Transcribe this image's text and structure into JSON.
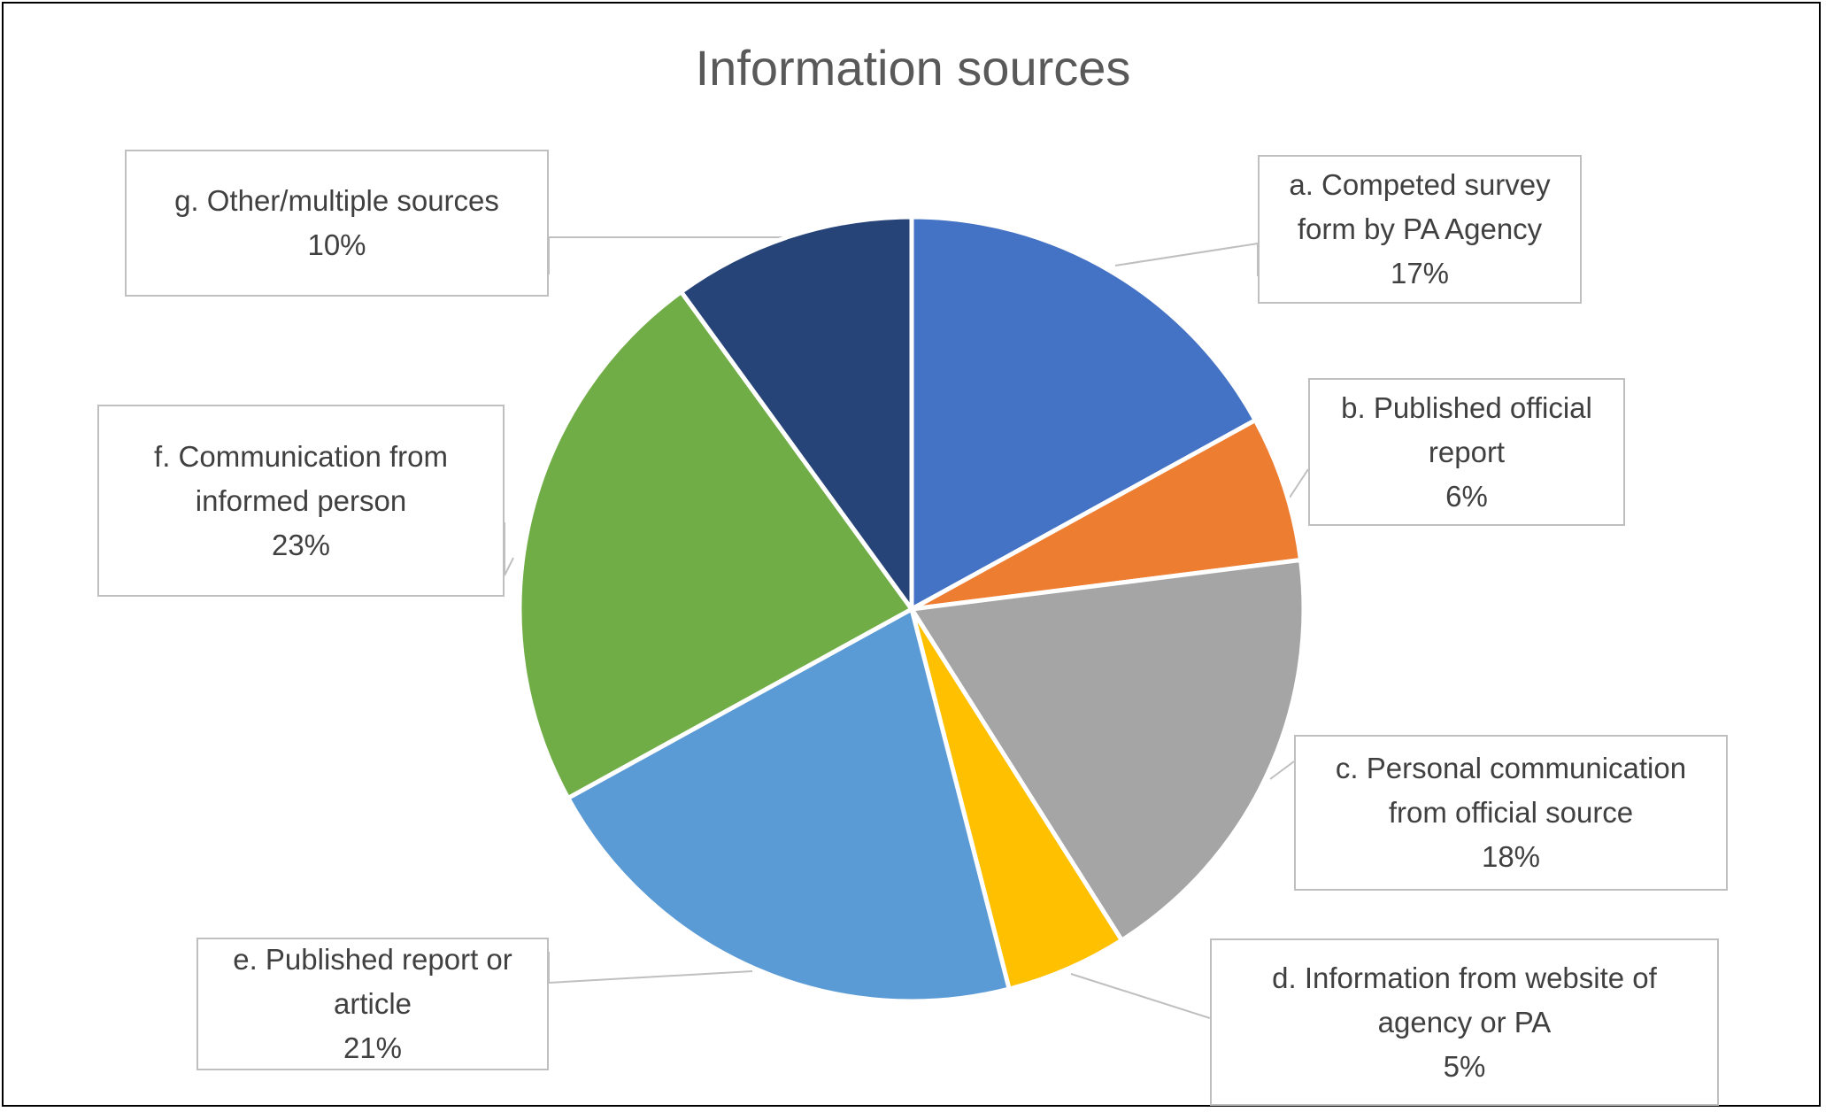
{
  "chart_data": {
    "type": "pie",
    "title": "Information sources",
    "slices": [
      {
        "label_lines": [
          "a. Competed survey",
          "form by PA Agency"
        ],
        "percent_label": "17%",
        "value": 17,
        "color": "#4472C4"
      },
      {
        "label_lines": [
          "b. Published official",
          "report"
        ],
        "percent_label": "6%",
        "value": 6,
        "color": "#ED7D31"
      },
      {
        "label_lines": [
          "c. Personal communication",
          "from official source"
        ],
        "percent_label": "18%",
        "value": 18,
        "color": "#A5A5A5"
      },
      {
        "label_lines": [
          "d. Information from website of",
          "agency or PA"
        ],
        "percent_label": "5%",
        "value": 5,
        "color": "#FFC000"
      },
      {
        "label_lines": [
          "e. Published report or",
          "article"
        ],
        "percent_label": "21%",
        "value": 21,
        "color": "#5B9BD5"
      },
      {
        "label_lines": [
          "f. Communication from",
          "informed person"
        ],
        "percent_label": "23%",
        "value": 23,
        "color": "#70AD47"
      },
      {
        "label_lines": [
          "g. Other/multiple sources"
        ],
        "percent_label": "10%",
        "value": 10,
        "color": "#264478"
      }
    ],
    "legend": "none",
    "label_placement": "outside-callouts"
  }
}
